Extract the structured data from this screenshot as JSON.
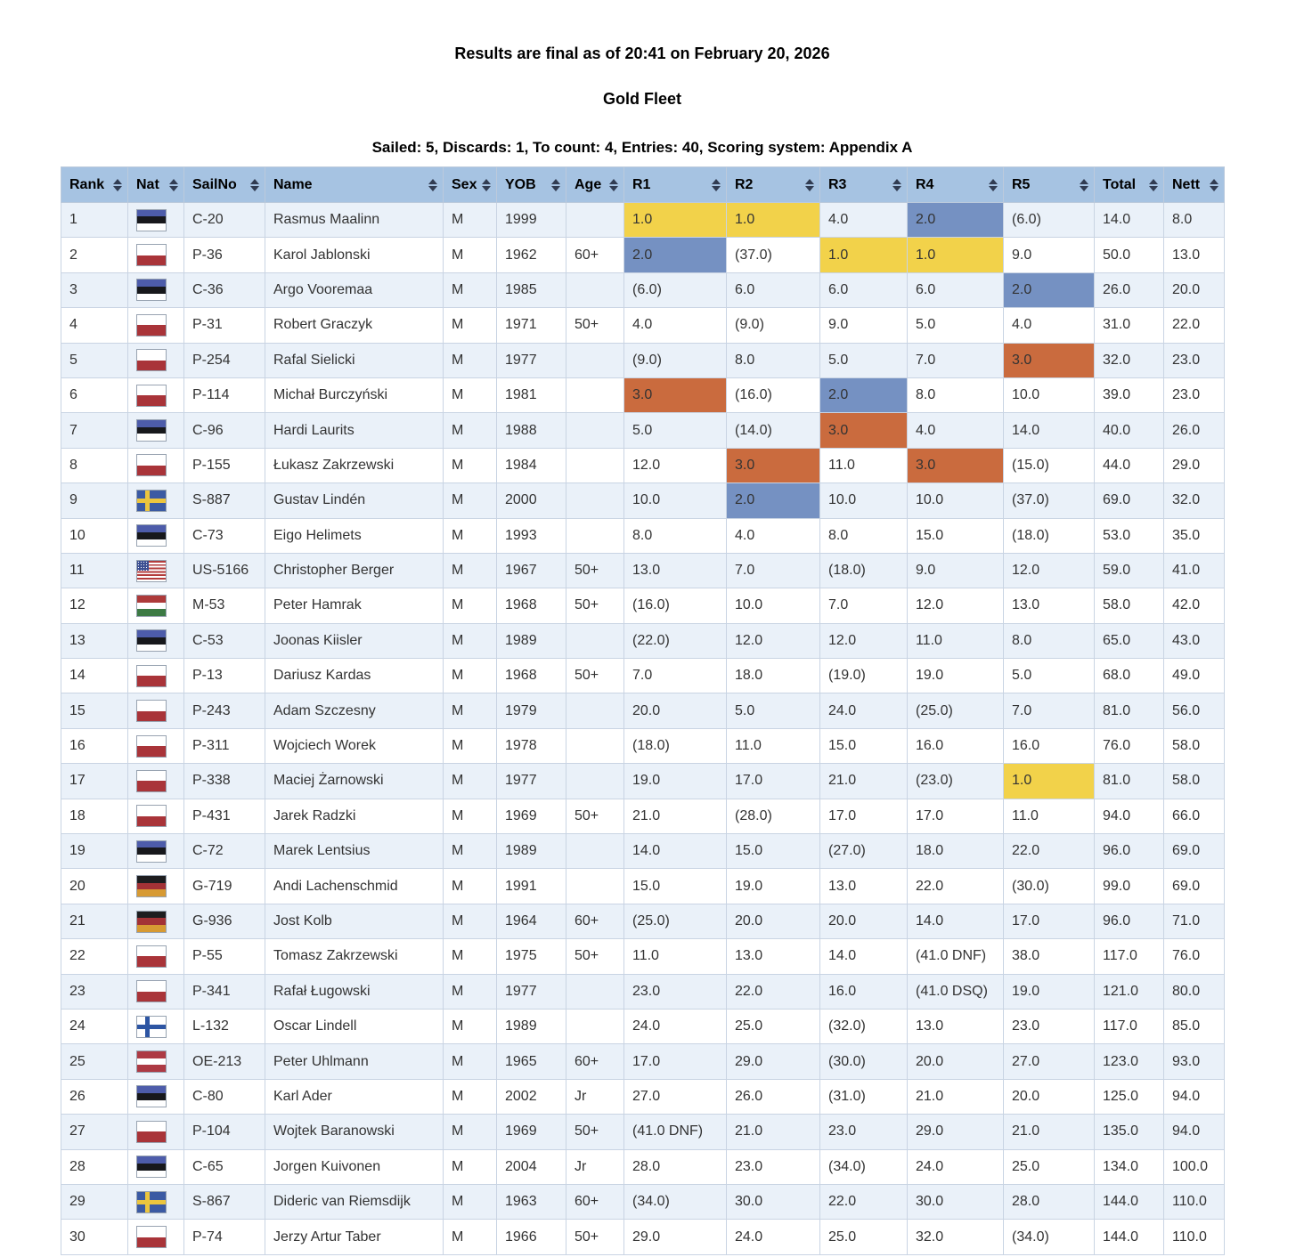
{
  "page": {
    "final_notice": "Results are final as of 20:41 on February 20, 2026",
    "fleet_title": "Gold Fleet",
    "summary": "Sailed: 5, Discards: 1, To count: 4, Entries: 40, Scoring system: Appendix A"
  },
  "colors": {
    "header_bg": "#a6c3e2",
    "row_alt_bg": "#eaf1f9",
    "row_bg": "#ffffff",
    "border": "#c9d4e3",
    "highlight_first": "#f2d24a",
    "highlight_second": "#7591c2",
    "highlight_third": "#ca6b3e"
  },
  "flags": {
    "EST": {
      "type": "h",
      "stripes": [
        "#4d5caa",
        "#17181c",
        "#ffffff"
      ]
    },
    "POL": {
      "type": "h",
      "stripes": [
        "#ffffff",
        "#a93439"
      ]
    },
    "SWE": {
      "type": "cross",
      "bg": "#3b5aa3",
      "cross": "#ecc53e"
    },
    "USA": {
      "type": "usa",
      "stripe_red": "#b33c3c",
      "stripe_white": "#ffffff",
      "canton": "#3c4f92"
    },
    "HUN": {
      "type": "h",
      "stripes": [
        "#ad3a3a",
        "#ffffff",
        "#3c7a44"
      ]
    },
    "GER": {
      "type": "h",
      "stripes": [
        "#1d1d1f",
        "#a33236",
        "#d79a33"
      ]
    },
    "FIN": {
      "type": "cross",
      "bg": "#ffffff",
      "cross": "#2d55a3"
    },
    "AUT": {
      "type": "h",
      "stripes": [
        "#ad3a44",
        "#ffffff",
        "#ad3a44"
      ]
    }
  },
  "table": {
    "columns": [
      {
        "key": "rank",
        "label": "Rank"
      },
      {
        "key": "nat",
        "label": "Nat"
      },
      {
        "key": "sailno",
        "label": "SailNo"
      },
      {
        "key": "name",
        "label": "Name"
      },
      {
        "key": "sex",
        "label": "Sex"
      },
      {
        "key": "yob",
        "label": "YOB"
      },
      {
        "key": "age",
        "label": "Age"
      },
      {
        "key": "r1",
        "label": "R1"
      },
      {
        "key": "r2",
        "label": "R2"
      },
      {
        "key": "r3",
        "label": "R3"
      },
      {
        "key": "r4",
        "label": "R4"
      },
      {
        "key": "r5",
        "label": "R5"
      },
      {
        "key": "total",
        "label": "Total"
      },
      {
        "key": "nett",
        "label": "Nett"
      }
    ],
    "rows": [
      {
        "rank": "1",
        "nat": "EST",
        "sailno": "C-20",
        "name": "Rasmus Maalinn",
        "sex": "M",
        "yob": "1999",
        "age": "",
        "races": [
          [
            "1.0",
            1
          ],
          [
            "1.0",
            1
          ],
          [
            "4.0",
            0
          ],
          [
            "2.0",
            2
          ],
          [
            "(6.0)",
            0
          ]
        ],
        "total": "14.0",
        "nett": "8.0"
      },
      {
        "rank": "2",
        "nat": "POL",
        "sailno": "P-36",
        "name": "Karol Jablonski",
        "sex": "M",
        "yob": "1962",
        "age": "60+",
        "races": [
          [
            "2.0",
            2
          ],
          [
            "(37.0)",
            0
          ],
          [
            "1.0",
            1
          ],
          [
            "1.0",
            1
          ],
          [
            "9.0",
            0
          ]
        ],
        "total": "50.0",
        "nett": "13.0"
      },
      {
        "rank": "3",
        "nat": "EST",
        "sailno": "C-36",
        "name": "Argo Vooremaa",
        "sex": "M",
        "yob": "1985",
        "age": "",
        "races": [
          [
            "(6.0)",
            0
          ],
          [
            "6.0",
            0
          ],
          [
            "6.0",
            0
          ],
          [
            "6.0",
            0
          ],
          [
            "2.0",
            2
          ]
        ],
        "total": "26.0",
        "nett": "20.0"
      },
      {
        "rank": "4",
        "nat": "POL",
        "sailno": "P-31",
        "name": "Robert Graczyk",
        "sex": "M",
        "yob": "1971",
        "age": "50+",
        "races": [
          [
            "4.0",
            0
          ],
          [
            "(9.0)",
            0
          ],
          [
            "9.0",
            0
          ],
          [
            "5.0",
            0
          ],
          [
            "4.0",
            0
          ]
        ],
        "total": "31.0",
        "nett": "22.0"
      },
      {
        "rank": "5",
        "nat": "POL",
        "sailno": "P-254",
        "name": "Rafal Sielicki",
        "sex": "M",
        "yob": "1977",
        "age": "",
        "races": [
          [
            "(9.0)",
            0
          ],
          [
            "8.0",
            0
          ],
          [
            "5.0",
            0
          ],
          [
            "7.0",
            0
          ],
          [
            "3.0",
            3
          ]
        ],
        "total": "32.0",
        "nett": "23.0"
      },
      {
        "rank": "6",
        "nat": "POL",
        "sailno": "P-114",
        "name": "Michał Burczyński",
        "sex": "M",
        "yob": "1981",
        "age": "",
        "races": [
          [
            "3.0",
            3
          ],
          [
            "(16.0)",
            0
          ],
          [
            "2.0",
            2
          ],
          [
            "8.0",
            0
          ],
          [
            "10.0",
            0
          ]
        ],
        "total": "39.0",
        "nett": "23.0"
      },
      {
        "rank": "7",
        "nat": "EST",
        "sailno": "C-96",
        "name": "Hardi Laurits",
        "sex": "M",
        "yob": "1988",
        "age": "",
        "races": [
          [
            "5.0",
            0
          ],
          [
            "(14.0)",
            0
          ],
          [
            "3.0",
            3
          ],
          [
            "4.0",
            0
          ],
          [
            "14.0",
            0
          ]
        ],
        "total": "40.0",
        "nett": "26.0"
      },
      {
        "rank": "8",
        "nat": "POL",
        "sailno": "P-155",
        "name": "Łukasz Zakrzewski",
        "sex": "M",
        "yob": "1984",
        "age": "",
        "races": [
          [
            "12.0",
            0
          ],
          [
            "3.0",
            3
          ],
          [
            "11.0",
            0
          ],
          [
            "3.0",
            3
          ],
          [
            "(15.0)",
            0
          ]
        ],
        "total": "44.0",
        "nett": "29.0"
      },
      {
        "rank": "9",
        "nat": "SWE",
        "sailno": "S-887",
        "name": "Gustav Lindén",
        "sex": "M",
        "yob": "2000",
        "age": "",
        "races": [
          [
            "10.0",
            0
          ],
          [
            "2.0",
            2
          ],
          [
            "10.0",
            0
          ],
          [
            "10.0",
            0
          ],
          [
            "(37.0)",
            0
          ]
        ],
        "total": "69.0",
        "nett": "32.0"
      },
      {
        "rank": "10",
        "nat": "EST",
        "sailno": "C-73",
        "name": "Eigo Helimets",
        "sex": "M",
        "yob": "1993",
        "age": "",
        "races": [
          [
            "8.0",
            0
          ],
          [
            "4.0",
            0
          ],
          [
            "8.0",
            0
          ],
          [
            "15.0",
            0
          ],
          [
            "(18.0)",
            0
          ]
        ],
        "total": "53.0",
        "nett": "35.0"
      },
      {
        "rank": "11",
        "nat": "USA",
        "sailno": "US-5166",
        "name": "Christopher Berger",
        "sex": "M",
        "yob": "1967",
        "age": "50+",
        "races": [
          [
            "13.0",
            0
          ],
          [
            "7.0",
            0
          ],
          [
            "(18.0)",
            0
          ],
          [
            "9.0",
            0
          ],
          [
            "12.0",
            0
          ]
        ],
        "total": "59.0",
        "nett": "41.0"
      },
      {
        "rank": "12",
        "nat": "HUN",
        "sailno": "M-53",
        "name": "Peter Hamrak",
        "sex": "M",
        "yob": "1968",
        "age": "50+",
        "races": [
          [
            "(16.0)",
            0
          ],
          [
            "10.0",
            0
          ],
          [
            "7.0",
            0
          ],
          [
            "12.0",
            0
          ],
          [
            "13.0",
            0
          ]
        ],
        "total": "58.0",
        "nett": "42.0"
      },
      {
        "rank": "13",
        "nat": "EST",
        "sailno": "C-53",
        "name": "Joonas Kiisler",
        "sex": "M",
        "yob": "1989",
        "age": "",
        "races": [
          [
            "(22.0)",
            0
          ],
          [
            "12.0",
            0
          ],
          [
            "12.0",
            0
          ],
          [
            "11.0",
            0
          ],
          [
            "8.0",
            0
          ]
        ],
        "total": "65.0",
        "nett": "43.0"
      },
      {
        "rank": "14",
        "nat": "POL",
        "sailno": "P-13",
        "name": "Dariusz Kardas",
        "sex": "M",
        "yob": "1968",
        "age": "50+",
        "races": [
          [
            "7.0",
            0
          ],
          [
            "18.0",
            0
          ],
          [
            "(19.0)",
            0
          ],
          [
            "19.0",
            0
          ],
          [
            "5.0",
            0
          ]
        ],
        "total": "68.0",
        "nett": "49.0"
      },
      {
        "rank": "15",
        "nat": "POL",
        "sailno": "P-243",
        "name": "Adam Szczesny",
        "sex": "M",
        "yob": "1979",
        "age": "",
        "races": [
          [
            "20.0",
            0
          ],
          [
            "5.0",
            0
          ],
          [
            "24.0",
            0
          ],
          [
            "(25.0)",
            0
          ],
          [
            "7.0",
            0
          ]
        ],
        "total": "81.0",
        "nett": "56.0"
      },
      {
        "rank": "16",
        "nat": "POL",
        "sailno": "P-311",
        "name": "Wojciech Worek",
        "sex": "M",
        "yob": "1978",
        "age": "",
        "races": [
          [
            "(18.0)",
            0
          ],
          [
            "11.0",
            0
          ],
          [
            "15.0",
            0
          ],
          [
            "16.0",
            0
          ],
          [
            "16.0",
            0
          ]
        ],
        "total": "76.0",
        "nett": "58.0"
      },
      {
        "rank": "17",
        "nat": "POL",
        "sailno": "P-338",
        "name": "Maciej Żarnowski",
        "sex": "M",
        "yob": "1977",
        "age": "",
        "races": [
          [
            "19.0",
            0
          ],
          [
            "17.0",
            0
          ],
          [
            "21.0",
            0
          ],
          [
            "(23.0)",
            0
          ],
          [
            "1.0",
            1
          ]
        ],
        "total": "81.0",
        "nett": "58.0"
      },
      {
        "rank": "18",
        "nat": "POL",
        "sailno": "P-431",
        "name": "Jarek Radzki",
        "sex": "M",
        "yob": "1969",
        "age": "50+",
        "races": [
          [
            "21.0",
            0
          ],
          [
            "(28.0)",
            0
          ],
          [
            "17.0",
            0
          ],
          [
            "17.0",
            0
          ],
          [
            "11.0",
            0
          ]
        ],
        "total": "94.0",
        "nett": "66.0"
      },
      {
        "rank": "19",
        "nat": "EST",
        "sailno": "C-72",
        "name": "Marek Lentsius",
        "sex": "M",
        "yob": "1989",
        "age": "",
        "races": [
          [
            "14.0",
            0
          ],
          [
            "15.0",
            0
          ],
          [
            "(27.0)",
            0
          ],
          [
            "18.0",
            0
          ],
          [
            "22.0",
            0
          ]
        ],
        "total": "96.0",
        "nett": "69.0"
      },
      {
        "rank": "20",
        "nat": "GER",
        "sailno": "G-719",
        "name": "Andi Lachenschmid",
        "sex": "M",
        "yob": "1991",
        "age": "",
        "races": [
          [
            "15.0",
            0
          ],
          [
            "19.0",
            0
          ],
          [
            "13.0",
            0
          ],
          [
            "22.0",
            0
          ],
          [
            "(30.0)",
            0
          ]
        ],
        "total": "99.0",
        "nett": "69.0"
      },
      {
        "rank": "21",
        "nat": "GER",
        "sailno": "G-936",
        "name": "Jost Kolb",
        "sex": "M",
        "yob": "1964",
        "age": "60+",
        "races": [
          [
            "(25.0)",
            0
          ],
          [
            "20.0",
            0
          ],
          [
            "20.0",
            0
          ],
          [
            "14.0",
            0
          ],
          [
            "17.0",
            0
          ]
        ],
        "total": "96.0",
        "nett": "71.0"
      },
      {
        "rank": "22",
        "nat": "POL",
        "sailno": "P-55",
        "name": "Tomasz Zakrzewski",
        "sex": "M",
        "yob": "1975",
        "age": "50+",
        "races": [
          [
            "11.0",
            0
          ],
          [
            "13.0",
            0
          ],
          [
            "14.0",
            0
          ],
          [
            "(41.0 DNF)",
            0
          ],
          [
            "38.0",
            0
          ]
        ],
        "total": "117.0",
        "nett": "76.0"
      },
      {
        "rank": "23",
        "nat": "POL",
        "sailno": "P-341",
        "name": "Rafał Ługowski",
        "sex": "M",
        "yob": "1977",
        "age": "",
        "races": [
          [
            "23.0",
            0
          ],
          [
            "22.0",
            0
          ],
          [
            "16.0",
            0
          ],
          [
            "(41.0 DSQ)",
            0
          ],
          [
            "19.0",
            0
          ]
        ],
        "total": "121.0",
        "nett": "80.0"
      },
      {
        "rank": "24",
        "nat": "FIN",
        "sailno": "L-132",
        "name": "Oscar Lindell",
        "sex": "M",
        "yob": "1989",
        "age": "",
        "races": [
          [
            "24.0",
            0
          ],
          [
            "25.0",
            0
          ],
          [
            "(32.0)",
            0
          ],
          [
            "13.0",
            0
          ],
          [
            "23.0",
            0
          ]
        ],
        "total": "117.0",
        "nett": "85.0"
      },
      {
        "rank": "25",
        "nat": "AUT",
        "sailno": "OE-213",
        "name": "Peter Uhlmann",
        "sex": "M",
        "yob": "1965",
        "age": "60+",
        "races": [
          [
            "17.0",
            0
          ],
          [
            "29.0",
            0
          ],
          [
            "(30.0)",
            0
          ],
          [
            "20.0",
            0
          ],
          [
            "27.0",
            0
          ]
        ],
        "total": "123.0",
        "nett": "93.0"
      },
      {
        "rank": "26",
        "nat": "EST",
        "sailno": "C-80",
        "name": "Karl Ader",
        "sex": "M",
        "yob": "2002",
        "age": "Jr",
        "races": [
          [
            "27.0",
            0
          ],
          [
            "26.0",
            0
          ],
          [
            "(31.0)",
            0
          ],
          [
            "21.0",
            0
          ],
          [
            "20.0",
            0
          ]
        ],
        "total": "125.0",
        "nett": "94.0"
      },
      {
        "rank": "27",
        "nat": "POL",
        "sailno": "P-104",
        "name": "Wojtek Baranowski",
        "sex": "M",
        "yob": "1969",
        "age": "50+",
        "races": [
          [
            "(41.0 DNF)",
            0
          ],
          [
            "21.0",
            0
          ],
          [
            "23.0",
            0
          ],
          [
            "29.0",
            0
          ],
          [
            "21.0",
            0
          ]
        ],
        "total": "135.0",
        "nett": "94.0"
      },
      {
        "rank": "28",
        "nat": "EST",
        "sailno": "C-65",
        "name": "Jorgen Kuivonen",
        "sex": "M",
        "yob": "2004",
        "age": "Jr",
        "races": [
          [
            "28.0",
            0
          ],
          [
            "23.0",
            0
          ],
          [
            "(34.0)",
            0
          ],
          [
            "24.0",
            0
          ],
          [
            "25.0",
            0
          ]
        ],
        "total": "134.0",
        "nett": "100.0"
      },
      {
        "rank": "29",
        "nat": "SWE",
        "sailno": "S-867",
        "name": "Dideric van Riemsdijk",
        "sex": "M",
        "yob": "1963",
        "age": "60+",
        "races": [
          [
            "(34.0)",
            0
          ],
          [
            "30.0",
            0
          ],
          [
            "22.0",
            0
          ],
          [
            "30.0",
            0
          ],
          [
            "28.0",
            0
          ]
        ],
        "total": "144.0",
        "nett": "110.0"
      },
      {
        "rank": "30",
        "nat": "POL",
        "sailno": "P-74",
        "name": "Jerzy Artur Taber",
        "sex": "M",
        "yob": "1966",
        "age": "50+",
        "races": [
          [
            "29.0",
            0
          ],
          [
            "24.0",
            0
          ],
          [
            "25.0",
            0
          ],
          [
            "32.0",
            0
          ],
          [
            "(34.0)",
            0
          ]
        ],
        "total": "144.0",
        "nett": "110.0"
      }
    ]
  }
}
